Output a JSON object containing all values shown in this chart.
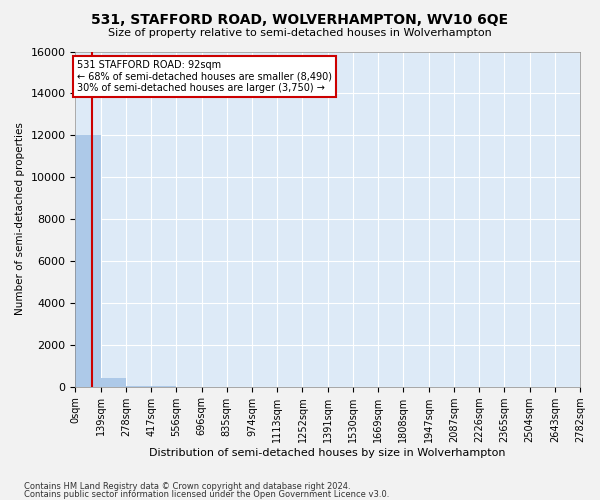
{
  "title": "531, STAFFORD ROAD, WOLVERHAMPTON, WV10 6QE",
  "subtitle": "Size of property relative to semi-detached houses in Wolverhampton",
  "xlabel": "Distribution of semi-detached houses by size in Wolverhampton",
  "ylabel": "Number of semi-detached properties",
  "footnote1": "Contains HM Land Registry data © Crown copyright and database right 2024.",
  "footnote2": "Contains public sector information licensed under the Open Government Licence v3.0.",
  "bin_labels": [
    "0sqm",
    "139sqm",
    "278sqm",
    "417sqm",
    "556sqm",
    "696sqm",
    "835sqm",
    "974sqm",
    "1113sqm",
    "1252sqm",
    "1391sqm",
    "1530sqm",
    "1669sqm",
    "1808sqm",
    "1947sqm",
    "2087sqm",
    "2226sqm",
    "2365sqm",
    "2504sqm",
    "2643sqm",
    "2782sqm"
  ],
  "bar_values": [
    12000,
    400,
    30,
    8,
    4,
    2,
    1,
    1,
    1,
    0,
    0,
    0,
    0,
    0,
    0,
    0,
    0,
    0,
    0,
    0
  ],
  "bar_color": "#adc9e8",
  "background_color": "#ddeaf7",
  "grid_color": "#ffffff",
  "property_line_x": 0.663,
  "property_line_color": "#cc0000",
  "annotation_line1": "531 STAFFORD ROAD: 92sqm",
  "annotation_line2": "← 68% of semi-detached houses are smaller (8,490)",
  "annotation_line3": "30% of semi-detached houses are larger (3,750) →",
  "annotation_box_color": "#cc0000",
  "ylim": [
    0,
    16000
  ],
  "yticks": [
    0,
    2000,
    4000,
    6000,
    8000,
    10000,
    12000,
    14000,
    16000
  ],
  "fig_bg": "#f2f2f2"
}
